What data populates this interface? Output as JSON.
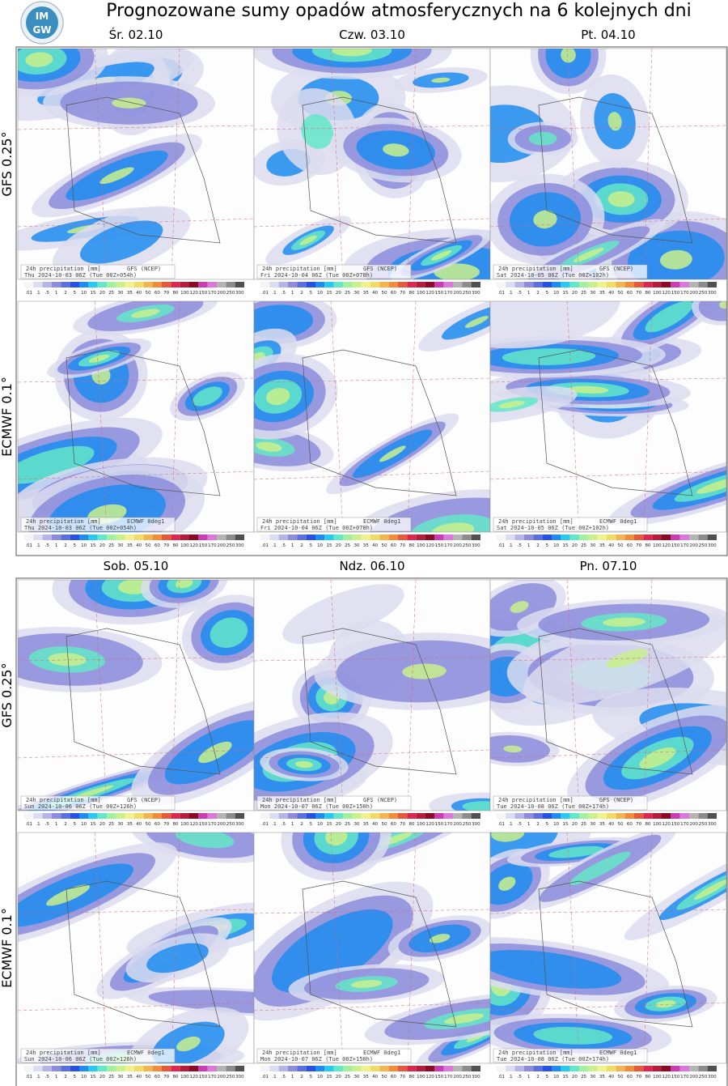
{
  "header": {
    "title": "Prognozowane sumy opadów atmosferycznych na 6 kolejnych dni",
    "logo": [
      "IM",
      "GW"
    ]
  },
  "colorbar": {
    "labels": [
      ".01",
      ".1",
      ".5",
      "1",
      "2",
      "5",
      "10",
      "15",
      "20",
      "25",
      "30",
      "35",
      "40",
      "50",
      "60",
      "70",
      "80",
      "100",
      "120",
      "150",
      "170",
      "200",
      "250",
      "300"
    ],
    "colors": [
      "#f4f4f4",
      "#dcdcf0",
      "#b4b4e6",
      "#8c8cdc",
      "#5a6edc",
      "#2850e6",
      "#1e8cf0",
      "#28c8f0",
      "#64e6c8",
      "#a0f0a0",
      "#c8f08c",
      "#f0f08c",
      "#f0dc64",
      "#f0b450",
      "#f08c3c",
      "#e65a3c",
      "#dc2850",
      "#b41e3c",
      "#8c0a28",
      "#c83cb4",
      "#dc78dc",
      "#b4b4b4",
      "#8c8c8c",
      "#505050"
    ]
  },
  "blocks": [
    {
      "days": [
        "Śr. 02.10",
        "Czw. 03.10",
        "Pt. 04.10"
      ],
      "rows": [
        {
          "model": "GFS 0.25°",
          "panels": [
            {
              "caption": "24h precipitation [mm]",
              "source": "GFS (NCEP)",
              "valid": "Thu 2024-10-03 06Z (Tue 00Z+054h)"
            },
            {
              "caption": "24h precipitation [mm]",
              "source": "GFS (NCEP)",
              "valid": "Fri 2024-10-04 06Z (Tue 00Z+078h)"
            },
            {
              "caption": "24h precipitation [mm]",
              "source": "GFS (NCEP)",
              "valid": "Sat 2024-10-05 06Z (Tue 00Z+102h)"
            }
          ]
        },
        {
          "model": "ECMWF 0.1°",
          "panels": [
            {
              "caption": "24h precipitation [mm]",
              "source": "ECMWF 0deg1",
              "valid": "Thu 2024-10-03 06Z (Tue 00Z+054h)"
            },
            {
              "caption": "24h precipitation [mm]",
              "source": "ECMWF 0deg1",
              "valid": "Fri 2024-10-04 06Z (Tue 00Z+078h)"
            },
            {
              "caption": "24h precipitation [mm]",
              "source": "ECMWF 0deg1",
              "valid": "Sat 2024-10-05 06Z (Tue 00Z+102h)"
            }
          ]
        }
      ]
    },
    {
      "days": [
        "Sob. 05.10",
        "Ndz. 06.10",
        "Pn. 07.10"
      ],
      "rows": [
        {
          "model": "GFS 0.25°",
          "panels": [
            {
              "caption": "24h precipitation [mm]",
              "source": "GFS (NCEP)",
              "valid": "Sun 2024-10-06 06Z (Tue 00Z+126h)"
            },
            {
              "caption": "24h precipitation [mm]",
              "source": "GFS (NCEP)",
              "valid": "Mon 2024-10-07 06Z (Tue 00Z+150h)"
            },
            {
              "caption": "24h precipitation [mm]",
              "source": "GFS (NCEP)",
              "valid": "Tue 2024-10-08 06Z (Tue 00Z+174h)"
            }
          ]
        },
        {
          "model": "ECMWF 0.1°",
          "panels": [
            {
              "caption": "24h precipitation [mm]",
              "source": "ECMWF 0deg1",
              "valid": "Sun 2024-10-06 06Z (Tue 00Z+126h)"
            },
            {
              "caption": "24h precipitation [mm]",
              "source": "ECMWF 0deg1",
              "valid": "Mon 2024-10-07 06Z (Tue 00Z+150h)"
            },
            {
              "caption": "24h precipitation [mm]",
              "source": "ECMWF 0deg1",
              "valid": "Tue 2024-10-08 06Z (Tue 00Z+174h)"
            }
          ]
        }
      ]
    }
  ]
}
